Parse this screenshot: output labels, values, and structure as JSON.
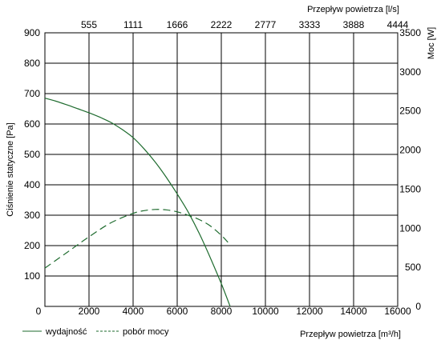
{
  "chart_data": {
    "type": "line",
    "x_label_bottom": "Przepływ powietrza [m³/h]",
    "x_label_top": "Przepływ powietrza [l/s]",
    "y_label_left": "Ciśnienie statyczne [Pa]",
    "y_label_right": "Moc [W]",
    "xlim": [
      0,
      16000
    ],
    "ylim_left": [
      0,
      900
    ],
    "ylim_right": [
      0,
      3500
    ],
    "grid": true,
    "x_ticks_bottom": [
      "0",
      "2000",
      "4000",
      "6000",
      "8000",
      "10000",
      "12000",
      "14000",
      "16000"
    ],
    "x_ticks_bottom_values": [
      0,
      2000,
      4000,
      6000,
      8000,
      10000,
      12000,
      14000,
      16000
    ],
    "x_ticks_top": [
      "555",
      "1111",
      "1666",
      "2222",
      "2777",
      "3333",
      "3888",
      "4444"
    ],
    "x_ticks_top_values": [
      2000,
      4000,
      6000,
      8000,
      10000,
      12000,
      14000,
      16000
    ],
    "y_ticks_left": [
      "0",
      "100",
      "200",
      "300",
      "400",
      "500",
      "600",
      "700",
      "800",
      "900"
    ],
    "y_ticks_left_values": [
      0,
      100,
      200,
      300,
      400,
      500,
      600,
      700,
      800,
      900
    ],
    "y_ticks_right": [
      "0",
      "500",
      "1000",
      "1500",
      "2000",
      "2500",
      "3000",
      "3500"
    ],
    "y_ticks_right_values": [
      0,
      500,
      1000,
      1500,
      2000,
      2500,
      3000,
      3500
    ],
    "series": [
      {
        "name": "wydajność",
        "axis": "left",
        "style": "solid",
        "color": "#1e6b2e",
        "x": [
          0,
          500,
          1000,
          1500,
          2000,
          2500,
          3000,
          3500,
          4000,
          4500,
          5000,
          5500,
          6000,
          6500,
          7000,
          7500,
          8000,
          8400
        ],
        "y": [
          685,
          675,
          663,
          650,
          637,
          622,
          605,
          582,
          555,
          518,
          475,
          425,
          370,
          310,
          240,
          160,
          75,
          0
        ]
      },
      {
        "name": "pobór mocy",
        "axis": "right",
        "style": "dashed",
        "color": "#1e6b2e",
        "x": [
          0,
          1000,
          2000,
          3000,
          4000,
          4500,
          5000,
          5500,
          6000,
          6500,
          7000,
          7500,
          8000,
          8300
        ],
        "y": [
          490,
          690,
          890,
          1070,
          1190,
          1225,
          1240,
          1235,
          1210,
          1165,
          1110,
          1030,
          910,
          820
        ]
      }
    ],
    "legend": [
      {
        "label": "wydajność",
        "style": "solid"
      },
      {
        "label": "pobór mocy",
        "style": "dashed"
      }
    ],
    "legend_position": "bottom-left"
  }
}
